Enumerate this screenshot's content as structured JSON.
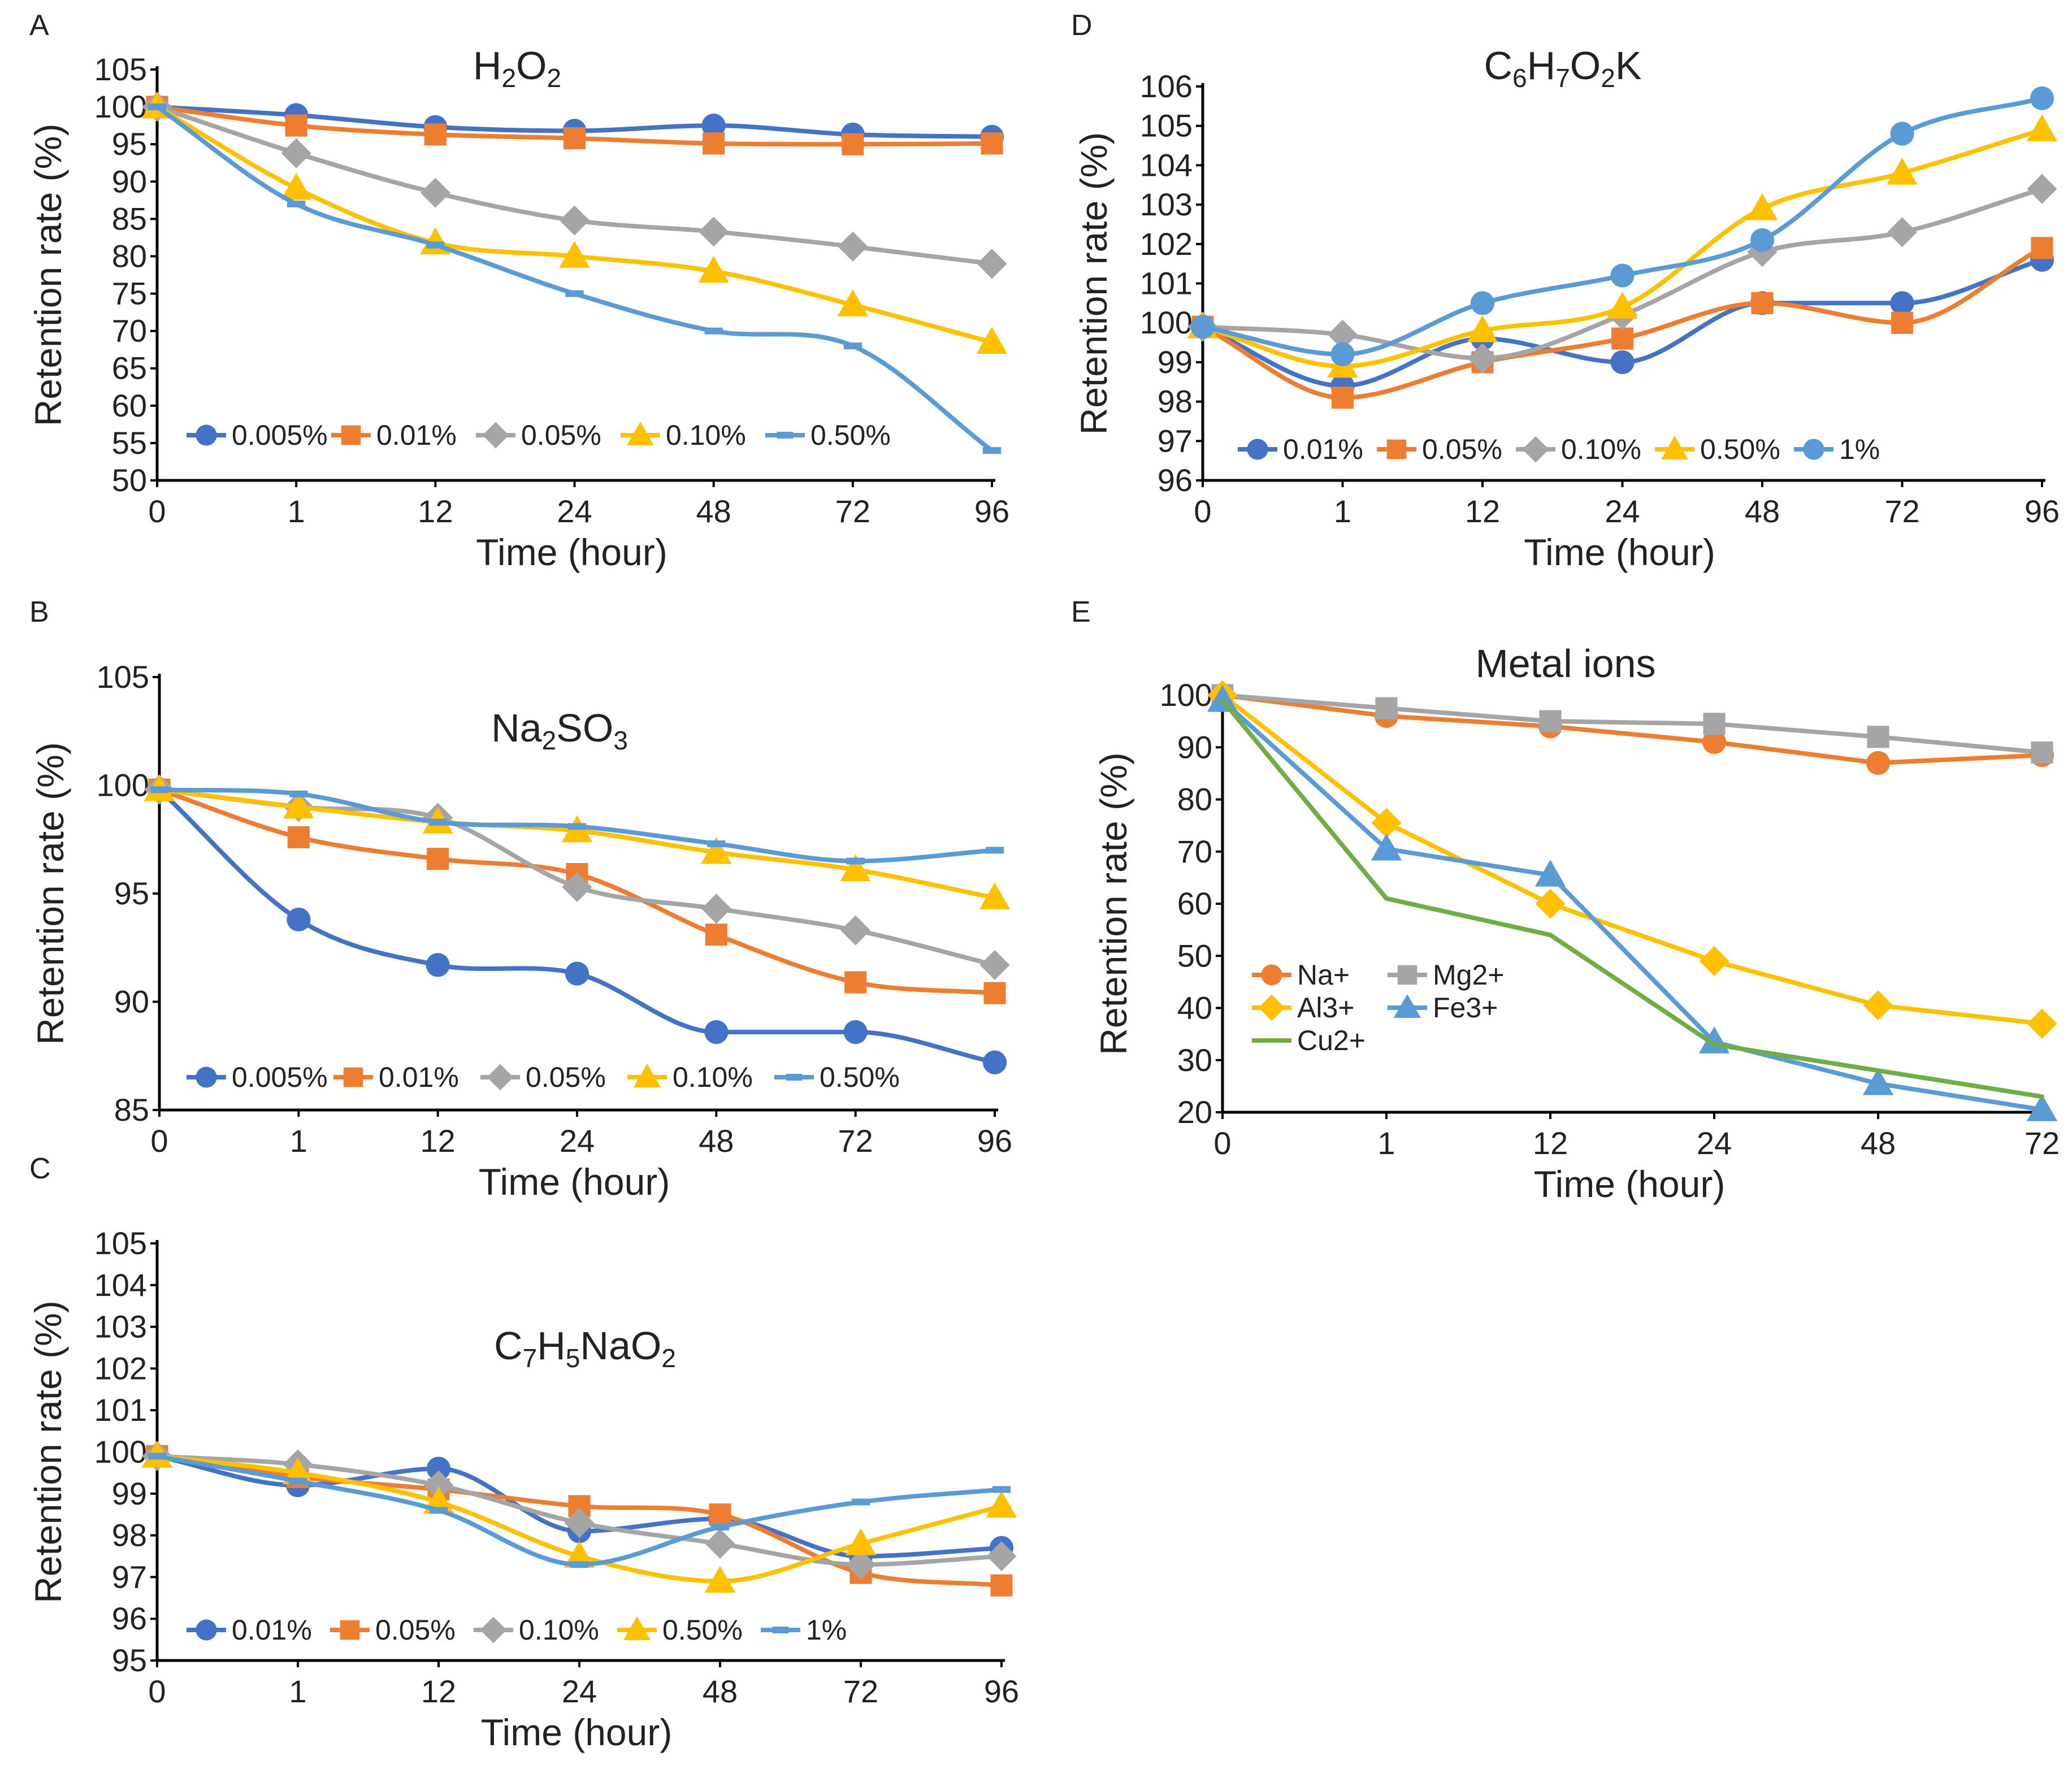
{
  "chart_data": [
    {
      "panel": "A",
      "type": "line",
      "title": "H2O2",
      "title_parts": [
        [
          "H",
          ""
        ],
        [
          "2",
          "sub"
        ],
        [
          "O",
          ""
        ],
        [
          "2",
          "sub"
        ]
      ],
      "xlabel": "Time (hour)",
      "ylabel": "Retention rate (%)",
      "categories": [
        "0",
        "1",
        "12",
        "24",
        "48",
        "72",
        "96"
      ],
      "ylim": [
        50,
        105
      ],
      "yticks": [
        50,
        55,
        60,
        65,
        70,
        75,
        80,
        85,
        90,
        95,
        100,
        105
      ],
      "legend": "bottom-inside",
      "series": [
        {
          "name": "0.005%",
          "color": "#4472C4",
          "marker": "circle",
          "values": [
            100,
            98.9,
            97.3,
            96.8,
            97.5,
            96.3,
            96
          ]
        },
        {
          "name": "0.01%",
          "color": "#ED7D31",
          "marker": "square",
          "values": [
            100,
            97.5,
            96.3,
            95.8,
            95.1,
            95,
            95.1
          ]
        },
        {
          "name": "0.05%",
          "color": "#A5A5A5",
          "marker": "diamond",
          "values": [
            100,
            93.8,
            88.5,
            84.8,
            83.3,
            81.3,
            79
          ]
        },
        {
          "name": "0.10%",
          "color": "#FFC000",
          "marker": "triangle",
          "values": [
            100,
            89.1,
            81.8,
            80,
            78,
            73.5,
            68.5
          ]
        },
        {
          "name": "0.50%",
          "color": "#5B9BD5",
          "marker": "dash",
          "values": [
            100,
            87,
            81.5,
            75,
            70,
            68,
            54
          ]
        }
      ]
    },
    {
      "panel": "B",
      "type": "line",
      "title": "Na2SO3",
      "title_parts": [
        [
          "Na",
          ""
        ],
        [
          "2",
          "sub"
        ],
        [
          "SO",
          ""
        ],
        [
          "3",
          "sub"
        ]
      ],
      "xlabel": "Time (hour)",
      "ylabel": "Retention rate (%)",
      "categories": [
        "0",
        "1",
        "12",
        "24",
        "48",
        "72",
        "96"
      ],
      "ylim": [
        85,
        105
      ],
      "yticks": [
        85,
        90,
        95,
        100,
        105
      ],
      "legend": "bottom-inside",
      "series": [
        {
          "name": "0.005%",
          "color": "#4472C4",
          "marker": "circle",
          "values": [
            99.8,
            93.8,
            91.7,
            91.3,
            88.6,
            88.6,
            87.2
          ]
        },
        {
          "name": "0.01%",
          "color": "#ED7D31",
          "marker": "square",
          "values": [
            99.8,
            97.6,
            96.6,
            95.9,
            93.1,
            90.9,
            90.4
          ]
        },
        {
          "name": "0.05%",
          "color": "#A5A5A5",
          "marker": "diamond",
          "values": [
            99.8,
            99,
            98.5,
            95.3,
            94.3,
            93.3,
            91.7
          ]
        },
        {
          "name": "0.10%",
          "color": "#FFC000",
          "marker": "triangle",
          "values": [
            99.8,
            99,
            98.3,
            97.9,
            96.9,
            96.1,
            94.8
          ]
        },
        {
          "name": "0.50%",
          "color": "#5B9BD5",
          "marker": "dash",
          "values": [
            99.8,
            99.6,
            98.3,
            98.1,
            97.3,
            96.5,
            97
          ]
        }
      ]
    },
    {
      "panel": "C",
      "type": "line",
      "title": "C7H5NaO2",
      "title_parts": [
        [
          "C",
          ""
        ],
        [
          "7",
          "sub"
        ],
        [
          "H",
          ""
        ],
        [
          "5",
          "sub"
        ],
        [
          "NaO",
          ""
        ],
        [
          "2",
          "sub"
        ]
      ],
      "xlabel": "Time (hour)",
      "ylabel": "Retention rate (%)",
      "categories": [
        "0",
        "1",
        "12",
        "24",
        "48",
        "72",
        "96"
      ],
      "ylim": [
        95,
        105
      ],
      "yticks": [
        95,
        96,
        97,
        98,
        99,
        100,
        101,
        102,
        103,
        104,
        105
      ],
      "legend": "bottom-inside",
      "series": [
        {
          "name": "0.01%",
          "color": "#4472C4",
          "marker": "circle",
          "values": [
            99.9,
            99.2,
            99.6,
            98.1,
            98.4,
            97.5,
            97.7
          ]
        },
        {
          "name": "0.05%",
          "color": "#ED7D31",
          "marker": "square",
          "values": [
            99.9,
            99.4,
            99.1,
            98.7,
            98.5,
            97.1,
            96.8
          ]
        },
        {
          "name": "0.10%",
          "color": "#A5A5A5",
          "marker": "diamond",
          "values": [
            99.9,
            99.7,
            99.2,
            98.3,
            97.8,
            97.3,
            97.5
          ]
        },
        {
          "name": "0.50%",
          "color": "#FFC000",
          "marker": "triangle",
          "values": [
            99.9,
            99.5,
            98.8,
            97.5,
            96.9,
            97.8,
            98.7
          ]
        },
        {
          "name": "1%",
          "color": "#5B9BD5",
          "marker": "dash",
          "values": [
            99.9,
            99.3,
            98.6,
            97.3,
            98.2,
            98.8,
            99.1
          ]
        }
      ]
    },
    {
      "panel": "D",
      "type": "line",
      "title": "C6H7O2K",
      "title_parts": [
        [
          "C",
          ""
        ],
        [
          "6",
          "sub"
        ],
        [
          "H",
          ""
        ],
        [
          "7",
          "sub"
        ],
        [
          "O",
          ""
        ],
        [
          "2",
          "sub"
        ],
        [
          "K",
          ""
        ]
      ],
      "xlabel": "Time (hour)",
      "ylabel": "Retention rate (%)",
      "categories": [
        "0",
        "1",
        "12",
        "24",
        "48",
        "72",
        "96"
      ],
      "ylim": [
        96,
        106
      ],
      "yticks": [
        96,
        97,
        98,
        99,
        100,
        101,
        102,
        103,
        104,
        105,
        106
      ],
      "legend": "bottom-inside",
      "series": [
        {
          "name": "0.01%",
          "color": "#4472C4",
          "marker": "circle",
          "values": [
            99.9,
            98.4,
            99.6,
            99,
            100.5,
            100.5,
            101.6
          ]
        },
        {
          "name": "0.05%",
          "color": "#ED7D31",
          "marker": "square",
          "values": [
            99.9,
            98.1,
            99,
            99.6,
            100.5,
            100,
            101.9
          ]
        },
        {
          "name": "0.10%",
          "color": "#A5A5A5",
          "marker": "diamond",
          "values": [
            99.9,
            99.7,
            99.1,
            100.2,
            101.8,
            102.3,
            103.4
          ]
        },
        {
          "name": "0.50%",
          "color": "#FFC000",
          "marker": "triangle",
          "values": [
            99.9,
            98.9,
            99.8,
            100.4,
            102.9,
            103.8,
            104.9
          ]
        },
        {
          "name": "1%",
          "color": "#5B9BD5",
          "marker": "circle",
          "values": [
            99.9,
            99.2,
            100.5,
            101.2,
            102.1,
            104.8,
            105.7
          ]
        }
      ]
    },
    {
      "panel": "E",
      "type": "line",
      "title": "Metal ions",
      "title_parts": [
        [
          "Metal ions",
          ""
        ]
      ],
      "xlabel": "Time (hour)",
      "ylabel": "Retention rate (%)",
      "categories": [
        "0",
        "1",
        "12",
        "24",
        "48",
        "72"
      ],
      "ylim": [
        20,
        100
      ],
      "yticks": [
        20,
        30,
        40,
        50,
        60,
        70,
        80,
        90,
        100
      ],
      "legend": "center-left",
      "series": [
        {
          "name": "Na+",
          "color": "#ED7D31",
          "marker": "circle",
          "values": [
            100,
            96,
            94,
            91,
            87,
            88.5
          ]
        },
        {
          "name": "Mg2+",
          "color": "#A5A5A5",
          "marker": "square",
          "values": [
            100,
            97.5,
            95,
            94.5,
            92,
            89
          ]
        },
        {
          "name": "Al3+",
          "color": "#FFC000",
          "marker": "diamond",
          "values": [
            100,
            75.5,
            60,
            49,
            40.5,
            37
          ]
        },
        {
          "name": "Fe3+",
          "color": "#5B9BD5",
          "marker": "triangle",
          "values": [
            99,
            70.5,
            65.5,
            33.5,
            25.5,
            20.5
          ]
        },
        {
          "name": "Cu2+",
          "color": "#70AD47",
          "marker": "none",
          "values": [
            99,
            61,
            54,
            33,
            28,
            23
          ]
        }
      ]
    }
  ]
}
